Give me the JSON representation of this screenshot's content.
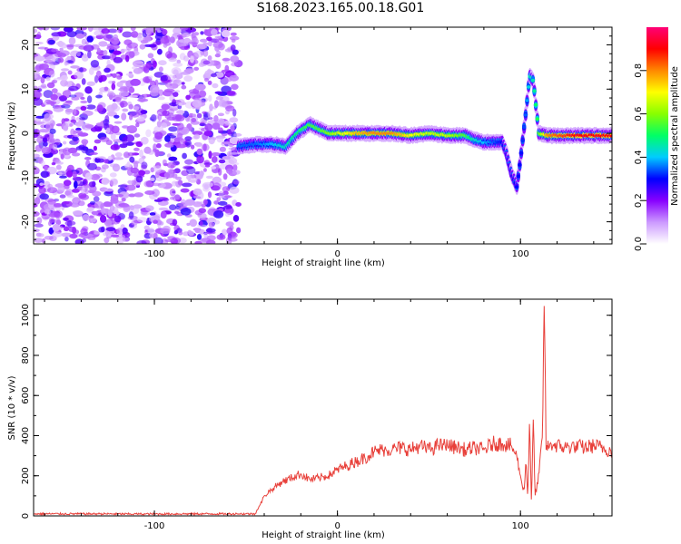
{
  "figure_title": "S168.2023.165.00.18.G01",
  "chart_data": [
    {
      "type": "heatmap",
      "title": "",
      "xlabel": "Height of straight line (km)",
      "ylabel": "Frequency (Hz)",
      "xlim": [
        -166,
        150
      ],
      "ylim": [
        -25,
        24
      ],
      "xticks": [
        -100,
        0,
        100
      ],
      "yticks": [
        -20,
        -10,
        0,
        10,
        20
      ],
      "colorbar": {
        "label": "Normalized spectral amplitude",
        "range": [
          0,
          1
        ],
        "ticks": [
          0.0,
          0.2,
          0.4,
          0.6,
          0.8
        ],
        "colors": [
          "#ffffff",
          "#cc99ff",
          "#8800ff",
          "#0000ff",
          "#00ccff",
          "#00ff66",
          "#88ff00",
          "#ffff00",
          "#ff8800",
          "#ff0000",
          "#ff0077"
        ]
      },
      "noise_region_x": [
        -166,
        -54
      ],
      "ridge": {
        "x": [
          -54,
          -45,
          -35,
          -28,
          -22,
          -15,
          -10,
          -5,
          0,
          10,
          20,
          30,
          40,
          50,
          60,
          70,
          75,
          80,
          85,
          90,
          92,
          95,
          98,
          100,
          103,
          105,
          107,
          110,
          115,
          130,
          150
        ],
        "frequency": [
          -3,
          -2.5,
          -2.5,
          -3,
          0,
          2,
          1,
          0,
          0,
          0,
          0,
          0,
          -0.5,
          0,
          -0.5,
          -0.5,
          -1.5,
          -2,
          -2,
          -2,
          -4,
          -9,
          -12,
          -6,
          5,
          13,
          12,
          0,
          -0.5,
          -0.5,
          -0.5
        ],
        "amplitude": [
          0.35,
          0.35,
          0.4,
          0.45,
          0.5,
          0.55,
          0.55,
          0.6,
          0.65,
          0.75,
          0.8,
          0.8,
          0.7,
          0.65,
          0.65,
          0.55,
          0.45,
          0.4,
          0.35,
          0.3,
          0.25,
          0.25,
          0.3,
          0.3,
          0.35,
          0.45,
          0.45,
          0.55,
          0.8,
          0.9,
          0.9
        ]
      }
    },
    {
      "type": "line",
      "title": "",
      "xlabel": "Height of straight line (km)",
      "ylabel": "SNR (10 * v/v)",
      "xlim": [
        -166,
        150
      ],
      "ylim": [
        0,
        1080
      ],
      "xticks": [
        -100,
        0,
        100
      ],
      "yticks": [
        0,
        200,
        400,
        600,
        800,
        1000
      ],
      "color": "#e8403a",
      "series": [
        {
          "x": [
            -166,
            -150,
            -130,
            -110,
            -90,
            -70,
            -55,
            -45,
            -42,
            -40,
            -35,
            -30,
            -25,
            -20,
            -15,
            -10,
            -5,
            0,
            5,
            10,
            15,
            20,
            25,
            30,
            35,
            40,
            45,
            50,
            55,
            60,
            65,
            70,
            75,
            80,
            85,
            90,
            95,
            98,
            100,
            102,
            103,
            104,
            105,
            106,
            107,
            108,
            110,
            112,
            113,
            114,
            116,
            120,
            125,
            130,
            135,
            140,
            145,
            150
          ],
          "y": [
            10,
            10,
            10,
            9,
            10,
            10,
            10,
            10,
            60,
            100,
            140,
            170,
            190,
            210,
            180,
            190,
            200,
            230,
            250,
            270,
            290,
            320,
            330,
            330,
            340,
            330,
            350,
            330,
            350,
            350,
            340,
            330,
            340,
            330,
            360,
            360,
            350,
            300,
            200,
            120,
            280,
            80,
            500,
            60,
            480,
            100,
            200,
            400,
            1080,
            330,
            360,
            350,
            340,
            350,
            340,
            350,
            340,
            320
          ]
        }
      ]
    }
  ]
}
